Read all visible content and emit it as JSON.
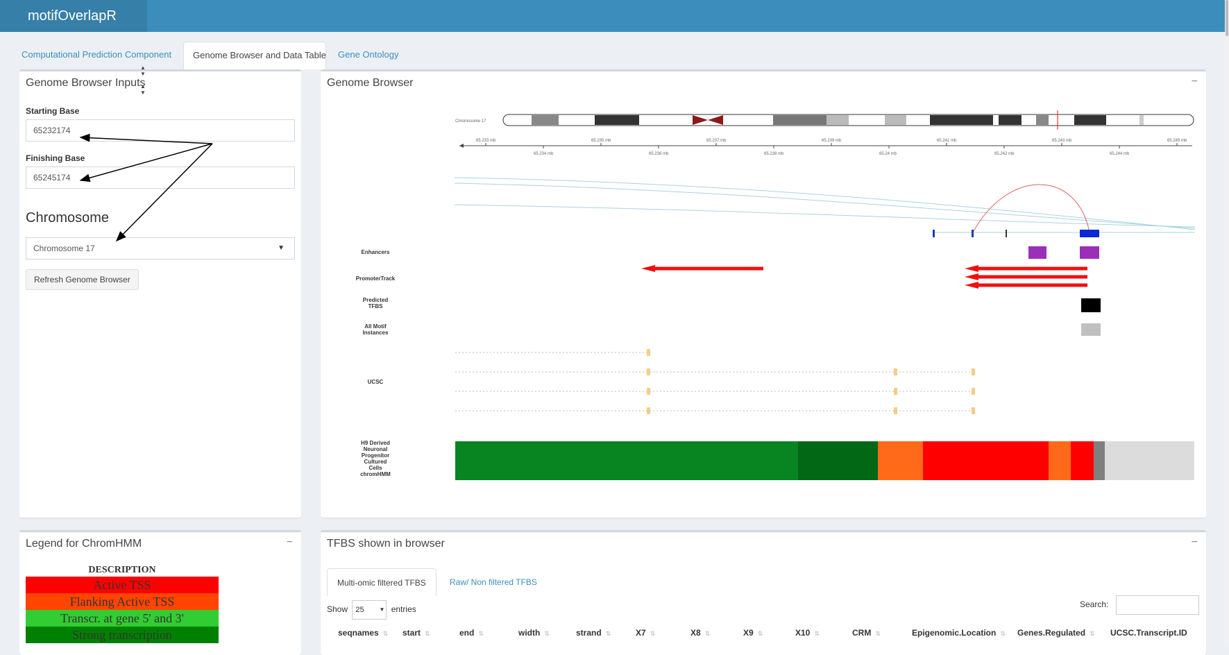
{
  "app": {
    "title": "motifOverlapR"
  },
  "tabs": [
    {
      "label": "Computational Prediction Component"
    },
    {
      "label": "Genome Browser and Data Table"
    },
    {
      "label": "Gene Ontology"
    }
  ],
  "inputs_panel": {
    "title": "Genome Browser Inputs",
    "start_label": "Starting Base",
    "start_value": "65232174",
    "finish_label": "Finishing Base",
    "finish_value": "65245174",
    "chrom_label": "Chromosome",
    "chrom_value": "Chromosome 17",
    "refresh_label": "Refresh Genome Browser"
  },
  "browser": {
    "title": "Genome Browser",
    "collapse": "−",
    "chrom_name": "Chromosome 17",
    "axis_top": [
      "65.233 mb",
      "65.235 mb",
      "65.237 mb",
      "65.239 mb",
      "65.241 mb",
      "65.243 mb",
      "65.245 mb"
    ],
    "axis_bottom": [
      "65.234 mb",
      "65.236 mb",
      "65.238 mb",
      "65.24 mb",
      "65.242 mb",
      "65.244 mb"
    ],
    "tracks": {
      "enhancers": "Enhancers",
      "promoter": "PromoterTrack",
      "predicted": "Predicted TFBS",
      "motif": "All Motif Instances",
      "ucsc": "UCSC",
      "chromhmm": "H9 Derived Neuronal Progenitor Cultured Cells chromHMM"
    }
  },
  "legend": {
    "title": "Legend for ChromHMM",
    "collapse": "−",
    "header": "DESCRIPTION",
    "rows": [
      {
        "label": "Active TSS",
        "color": "#ff0000"
      },
      {
        "label": "Flanking Active TSS",
        "color": "#ff4500"
      },
      {
        "label": "Transcr. at gene 5' and 3'",
        "color": "#32cd32"
      },
      {
        "label": "Strong transcription",
        "color": "#008000"
      }
    ]
  },
  "tfbs": {
    "title": "TFBS shown in browser",
    "collapse": "−",
    "subtabs": [
      "Multi-omic filtered TFBS",
      "Raw/ Non filtered TFBS"
    ],
    "show_label": "Show",
    "page_size": "25",
    "entries_label": "entries",
    "search_label": "Search:",
    "columns": [
      "seqnames",
      "start",
      "end",
      "width",
      "strand",
      "X7",
      "X8",
      "X9",
      "X10",
      "CRM",
      "Epigenomic.Location",
      "Genes.Regulated",
      "UCSC.Transcript.ID"
    ]
  }
}
